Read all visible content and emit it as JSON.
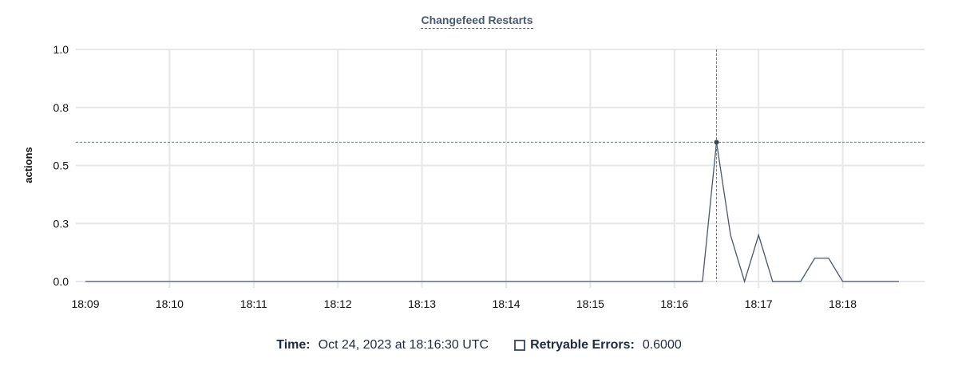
{
  "chart_data": {
    "type": "line",
    "title": "Changefeed Restarts",
    "xlabel": "",
    "ylabel": "actions",
    "ylim": [
      0,
      1.0
    ],
    "yticks": [
      0,
      0.25,
      0.5,
      0.75,
      1.0
    ],
    "ytick_labels": [
      "0.0",
      "0.3",
      "0.5",
      "0.8",
      "1.0"
    ],
    "xtick_labels": [
      "18:09",
      "18:10",
      "18:11",
      "18:12",
      "18:13",
      "18:14",
      "18:15",
      "18:16",
      "18:17",
      "18:18"
    ],
    "grid": true,
    "series": [
      {
        "name": "Retryable Errors",
        "color": "#475872",
        "x": [
          "18:09:00",
          "18:09:10",
          "18:09:20",
          "18:09:30",
          "18:09:40",
          "18:09:50",
          "18:10:00",
          "18:10:10",
          "18:10:20",
          "18:10:30",
          "18:10:40",
          "18:10:50",
          "18:11:00",
          "18:11:10",
          "18:11:20",
          "18:11:30",
          "18:11:40",
          "18:11:50",
          "18:12:00",
          "18:12:10",
          "18:12:20",
          "18:12:30",
          "18:12:40",
          "18:12:50",
          "18:13:00",
          "18:13:10",
          "18:13:20",
          "18:13:30",
          "18:13:40",
          "18:13:50",
          "18:14:00",
          "18:14:10",
          "18:14:20",
          "18:14:30",
          "18:14:40",
          "18:14:50",
          "18:15:00",
          "18:15:10",
          "18:15:20",
          "18:15:30",
          "18:15:40",
          "18:15:50",
          "18:16:00",
          "18:16:10",
          "18:16:20",
          "18:16:30",
          "18:16:40",
          "18:16:50",
          "18:17:00",
          "18:17:10",
          "18:17:20",
          "18:17:30",
          "18:17:40",
          "18:17:50",
          "18:18:00",
          "18:18:10",
          "18:18:20",
          "18:18:30",
          "18:18:40"
        ],
        "values": [
          0,
          0,
          0,
          0,
          0,
          0,
          0,
          0,
          0,
          0,
          0,
          0,
          0,
          0,
          0,
          0,
          0,
          0,
          0,
          0,
          0,
          0,
          0,
          0,
          0,
          0,
          0,
          0,
          0,
          0,
          0,
          0,
          0,
          0,
          0,
          0,
          0,
          0,
          0,
          0,
          0,
          0,
          0,
          0,
          0,
          0.6,
          0.2,
          0,
          0.2,
          0,
          0,
          0,
          0.1,
          0.1,
          0,
          0,
          0,
          0,
          0
        ]
      }
    ],
    "hover": {
      "x": "18:16:30",
      "y": 0.6
    }
  },
  "legend": {
    "time_label": "Time:",
    "time_value": "Oct 24, 2023 at 18:16:30 UTC",
    "series_label": "Retryable Errors:",
    "series_value": "0.6000"
  }
}
